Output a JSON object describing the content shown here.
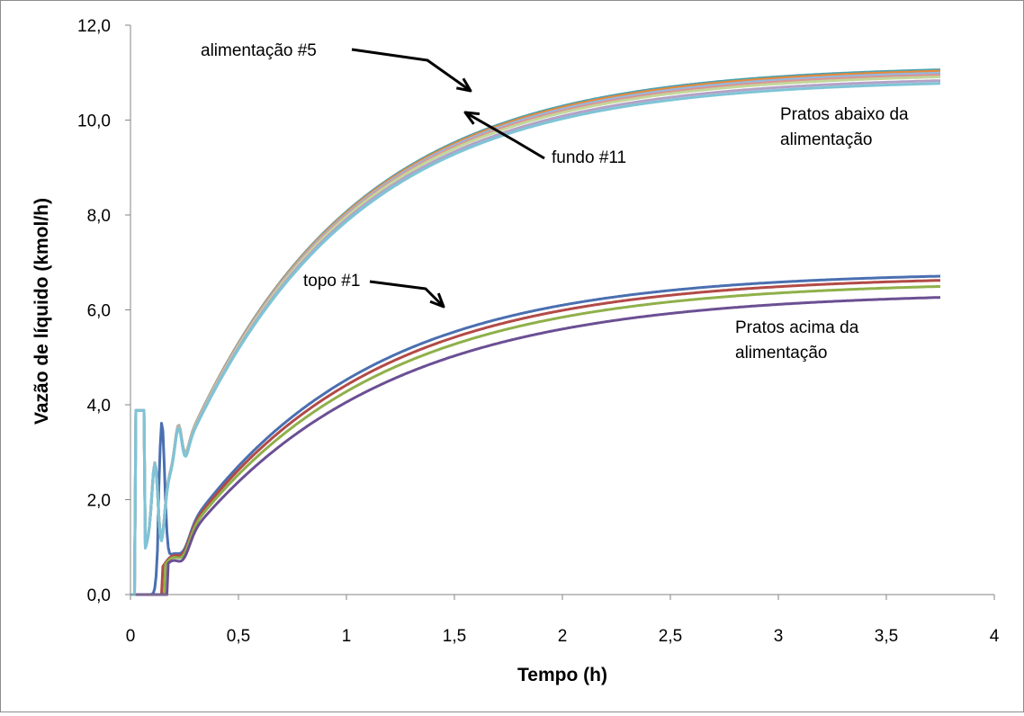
{
  "chart_data": {
    "type": "line",
    "title": "",
    "xlabel": "Tempo (h)",
    "ylabel": "Vazão de líquido (kmol/h)",
    "xlim": [
      0,
      4
    ],
    "ylim": [
      0,
      12
    ],
    "x_ticks": [
      "0",
      "0,5",
      "1",
      "1,5",
      "2",
      "2,5",
      "3",
      "3,5",
      "4"
    ],
    "y_ticks": [
      "0,0",
      "2,0",
      "4,0",
      "6,0",
      "8,0",
      "10,0",
      "12,0"
    ],
    "grid": false,
    "legend": "none",
    "annotations": {
      "feed": "alimentação #5",
      "bottom": "fundo #11",
      "top": "topo #1",
      "below_line1": "Pratos  abaixo da",
      "below_line2": "alimentação",
      "above_line1": "Pratos  acima da",
      "above_line2": "alimentação"
    },
    "series": [
      {
        "group": "above",
        "color": "#4a6fb0",
        "start": 0.13,
        "spike": 3.05,
        "tau": 0.85,
        "final": 6.8
      },
      {
        "group": "above",
        "color": "#b24a47",
        "start": 0.15,
        "spike": 0,
        "tau": 0.87,
        "final": 6.72
      },
      {
        "group": "above",
        "color": "#8fb04a",
        "start": 0.16,
        "spike": 0,
        "tau": 0.89,
        "final": 6.6
      },
      {
        "group": "above",
        "color": "#6b4f93",
        "start": 0.17,
        "spike": 0,
        "tau": 0.92,
        "final": 6.38
      },
      {
        "group": "below",
        "color": "#4aa0ae",
        "final": 11.15
      },
      {
        "group": "below",
        "color": "#e8893a",
        "final": 11.12
      },
      {
        "group": "below",
        "color": "#94b8e0",
        "final": 11.08
      },
      {
        "group": "below",
        "color": "#d99694",
        "final": 11.04
      },
      {
        "group": "below",
        "color": "#c3d69b",
        "final": 11.0
      },
      {
        "group": "below",
        "color": "#b2a2c7",
        "final": 10.92
      },
      {
        "group": "below",
        "color": "#7ec4d6",
        "final": 10.86
      }
    ]
  }
}
